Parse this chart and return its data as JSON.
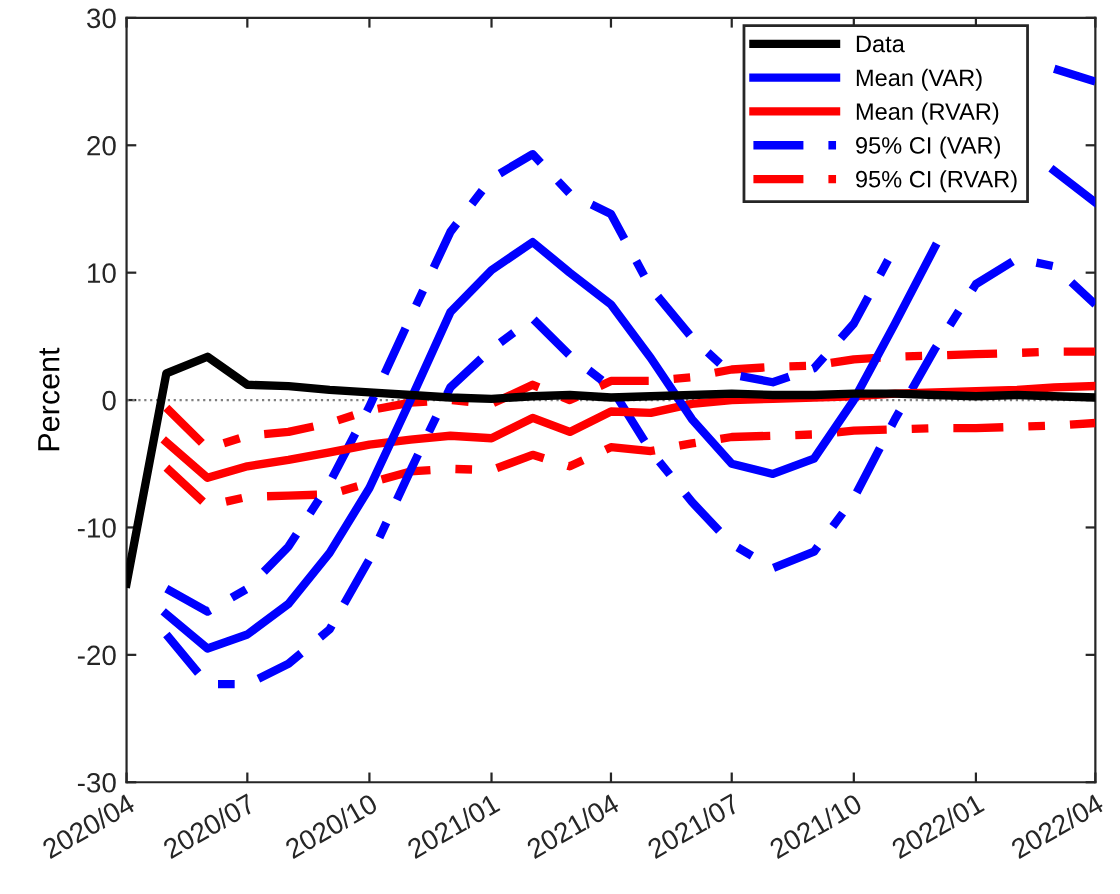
{
  "chart_data": {
    "type": "line",
    "ylabel": "Percent",
    "x": [
      "2020-04",
      "2020-05",
      "2020-06",
      "2020-07",
      "2020-08",
      "2020-09",
      "2020-10",
      "2020-11",
      "2020-12",
      "2021-01",
      "2021-02",
      "2021-03",
      "2021-04",
      "2021-05",
      "2021-06",
      "2021-07",
      "2021-08",
      "2021-09",
      "2021-10",
      "2021-11",
      "2021-12",
      "2022-01",
      "2022-02",
      "2022-03",
      "2022-04"
    ],
    "series": [
      {
        "name": "Data",
        "color": "#000000",
        "line_style": "solid",
        "values": [
          -14.4,
          2.1,
          3.4,
          1.2,
          1.1,
          0.8,
          0.6,
          0.4,
          0.2,
          0.1,
          0.3,
          0.4,
          0.2,
          0.3,
          0.4,
          0.5,
          0.4,
          0.4,
          0.5,
          0.5,
          0.4,
          0.3,
          0.4,
          0.3,
          0.2
        ]
      },
      {
        "name": "Mean (VAR)",
        "color": "#0000ff",
        "line_style": "solid",
        "values": [
          null,
          -16.8,
          -19.5,
          -18.4,
          -16,
          -12,
          -6.9,
          0,
          6.9,
          10.2,
          12.4,
          10,
          7.5,
          3.3,
          -1.5,
          -5,
          -5.8,
          -4.6,
          0,
          6,
          12,
          null,
          null,
          18,
          15.5
        ]
      },
      {
        "name": "Mean (RVAR)",
        "color": "#ff0000",
        "line_style": "solid",
        "values": [
          null,
          -3.3,
          -6.1,
          -5.2,
          -4.7,
          -4.1,
          -3.5,
          -3.1,
          -2.8,
          -3,
          -1.4,
          -2.5,
          -0.9,
          -1,
          -0.3,
          0,
          0.1,
          0.2,
          0.3,
          0.5,
          0.6,
          0.7,
          0.8,
          1,
          1.1
        ]
      },
      {
        "name": "95% CI (VAR)",
        "color": "#0000ff",
        "line_style": "dashdot",
        "values": [
          null,
          -14.8,
          -16.6,
          -14.8,
          -11.5,
          -6.5,
          -0.5,
          6.5,
          13.2,
          17.4,
          19.3,
          16.2,
          14.6,
          8.8,
          4.9,
          2,
          1.4,
          2.5,
          6,
          12,
          null,
          null,
          null,
          26,
          25
        ]
      },
      {
        "name": null,
        "color": "#0000ff",
        "line_style": "dashdot",
        "values": [
          null,
          -18.4,
          -22.3,
          -22.3,
          -20.7,
          -18,
          -12.5,
          -5.5,
          1,
          4,
          6.4,
          3.5,
          1,
          -4,
          -8,
          -11.3,
          -13.2,
          -11.9,
          -7.7,
          -1.5,
          4,
          9.1,
          11.1,
          10.5,
          7.5
        ]
      },
      {
        "name": "95% CI (RVAR)",
        "color": "#ff0000",
        "line_style": "dashdot",
        "values": [
          null,
          -0.6,
          -3.8,
          -2.8,
          -2.5,
          -1.8,
          -0.8,
          -0.2,
          0,
          -0.3,
          1.2,
          0,
          1.5,
          1.5,
          1.8,
          2.4,
          2.6,
          2.7,
          3.2,
          3.4,
          3.5,
          3.6,
          3.7,
          3.8,
          3.8
        ]
      },
      {
        "name": null,
        "color": "#ff0000",
        "line_style": "dashdot",
        "values": [
          null,
          -5.3,
          -8.3,
          -7.6,
          -7.5,
          -7.4,
          -6.5,
          -5.6,
          -5.4,
          -5.5,
          -4.3,
          -5.2,
          -3.7,
          -4,
          -3.4,
          -2.9,
          -2.8,
          -2.7,
          -2.4,
          -2.3,
          -2.2,
          -2.2,
          -2.1,
          -2,
          -1.8
        ]
      }
    ],
    "xlim": [
      "2020-04",
      "2022-04"
    ],
    "xticks": [
      {
        "value": "2020-04",
        "label": "2020/04"
      },
      {
        "value": "2020-07",
        "label": "2020/07"
      },
      {
        "value": "2020-10",
        "label": "2020/10"
      },
      {
        "value": "2021-01",
        "label": "2021/01"
      },
      {
        "value": "2021-04",
        "label": "2021/04"
      },
      {
        "value": "2021-07",
        "label": "2021/07"
      },
      {
        "value": "2021-10",
        "label": "2021/10"
      },
      {
        "value": "2022-01",
        "label": "2022/01"
      },
      {
        "value": "2022-04",
        "label": "2022/04"
      }
    ],
    "ylim": [
      -30,
      30
    ],
    "yticks": [
      -30,
      -20,
      -10,
      0,
      10,
      20,
      30
    ],
    "ref_lines": [
      {
        "axis": "y",
        "value": 0,
        "label": null,
        "color": "#808080",
        "line_style": "dotted"
      }
    ],
    "grid": false,
    "legend": "top right",
    "marker": "none"
  }
}
